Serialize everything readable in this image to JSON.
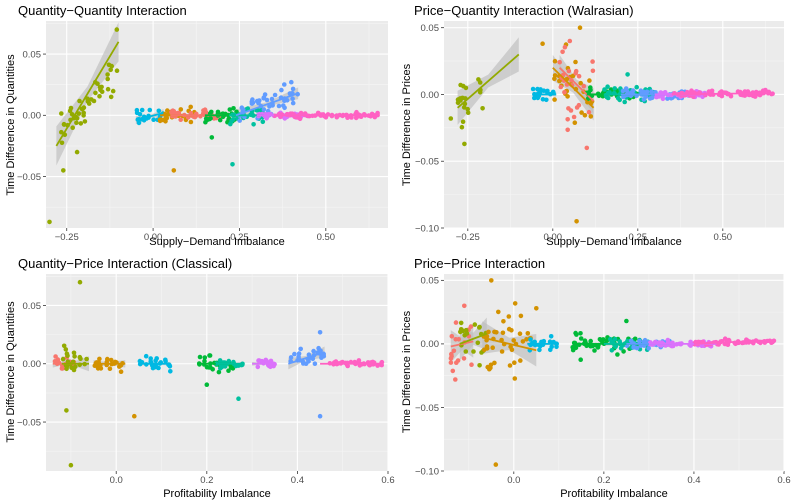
{
  "colors": {
    "panel_bg": "#EBEBEB",
    "grid_major": "#FFFFFF",
    "grid_minor": "#F5F5F5",
    "ribbon": "#BDBDBD",
    "groups": [
      "#F8766D",
      "#D39200",
      "#93AA00",
      "#00BA38",
      "#00C19F",
      "#00B9E3",
      "#619CFF",
      "#DB72FB",
      "#FF61C3"
    ]
  },
  "chart_data": [
    {
      "type": "scatter",
      "title": "Quantity−Quantity Interaction",
      "xlabel": "Supply−Demand Imbalance",
      "ylabel": "Time Difference in Quantities",
      "xlim": [
        -0.31,
        0.68
      ],
      "ylim": [
        -0.092,
        0.077
      ],
      "xticks": [
        -0.25,
        0.0,
        0.25,
        0.5
      ],
      "xtick_labels": [
        "−0.25",
        "0.00",
        "0.25",
        "0.50"
      ],
      "yticks": [
        -0.05,
        0.0,
        0.05
      ],
      "ytick_labels": [
        "−0.05",
        "0.00",
        "0.05"
      ],
      "grid": true,
      "groups": [
        {
          "color": "#93AA00",
          "x_range": [
            -0.28,
            -0.1
          ],
          "center": 0.0,
          "spread": 0.007,
          "outliers": [
            [
              -0.105,
              0.07
            ],
            [
              -0.3,
              -0.087
            ],
            [
              -0.26,
              -0.045
            ],
            [
              -0.22,
              -0.03
            ]
          ],
          "fit": [
            [
              -0.28,
              -0.025
            ],
            [
              -0.1,
              0.06
            ]
          ],
          "ribbon": 0.01
        },
        {
          "color": "#00B9E3",
          "x_range": [
            -0.05,
            0.03
          ],
          "center": 0.0,
          "spread": 0.003,
          "outliers": [],
          "fit": [
            [
              -0.05,
              -0.004
            ],
            [
              0.03,
              0.002
            ]
          ],
          "ribbon": 0.002
        },
        {
          "color": "#D39200",
          "x_range": [
            0.02,
            0.12
          ],
          "center": 0.0,
          "spread": 0.004,
          "outliers": [
            [
              0.06,
              -0.045
            ]
          ],
          "fit": [
            [
              0.02,
              0.0
            ],
            [
              0.12,
              0.0
            ]
          ],
          "ribbon": 0.001
        },
        {
          "color": "#F8766D",
          "x_range": [
            0.05,
            0.2
          ],
          "center": 0.0,
          "spread": 0.002,
          "outliers": [],
          "fit": [
            [
              0.05,
              0.0
            ],
            [
              0.2,
              0.0
            ]
          ],
          "ribbon": 0.001
        },
        {
          "color": "#00BA38",
          "x_range": [
            0.15,
            0.25
          ],
          "center": 0.0,
          "spread": 0.003,
          "outliers": [
            [
              0.17,
              -0.018
            ]
          ],
          "fit": [
            [
              0.15,
              0.0
            ],
            [
              0.25,
              0.0
            ]
          ],
          "ribbon": 0.001
        },
        {
          "color": "#00C19F",
          "x_range": [
            0.22,
            0.32
          ],
          "center": 0.0,
          "spread": 0.003,
          "outliers": [
            [
              0.23,
              -0.04
            ]
          ],
          "fit": [
            [
              0.22,
              0.0
            ],
            [
              0.32,
              0.0
            ]
          ],
          "ribbon": 0.001
        },
        {
          "color": "#619CFF",
          "x_range": [
            0.25,
            0.42
          ],
          "center": 0.008,
          "spread": 0.005,
          "outliers": [
            [
              0.4,
              0.027
            ]
          ],
          "fit": [
            [
              0.24,
              0.0
            ],
            [
              0.42,
              0.018
            ]
          ],
          "ribbon": 0.003
        },
        {
          "color": "#DB72FB",
          "x_range": [
            0.3,
            0.45
          ],
          "center": 0.0,
          "spread": 0.001,
          "outliers": [],
          "fit": [
            [
              0.3,
              0.0
            ],
            [
              0.45,
              0.0
            ]
          ],
          "ribbon": 0.0
        },
        {
          "color": "#FF61C3",
          "x_range": [
            0.35,
            0.65
          ],
          "center": 0.0,
          "spread": 0.001,
          "outliers": [],
          "fit": [
            [
              0.35,
              0.0
            ],
            [
              0.65,
              0.0
            ]
          ],
          "ribbon": 0.0
        }
      ]
    },
    {
      "type": "scatter",
      "title": "Price−Quantity Interaction (Walrasian)",
      "xlabel": "Supply−Demand Imbalance",
      "ylabel": "Time Difference in Prices",
      "xlim": [
        -0.32,
        0.68
      ],
      "ylim": [
        -0.1,
        0.055
      ],
      "xticks": [
        -0.25,
        0.0,
        0.25,
        0.5
      ],
      "xtick_labels": [
        "−0.25",
        "0.00",
        "0.25",
        "0.50"
      ],
      "yticks": [
        -0.1,
        -0.05,
        0.0,
        0.05
      ],
      "ytick_labels": [
        "−0.10",
        "−0.05",
        "0.00",
        "0.05"
      ],
      "grid": true,
      "groups": [
        {
          "color": "#93AA00",
          "x_range": [
            -0.28,
            -0.2
          ],
          "center": 0.003,
          "spread": 0.008,
          "outliers": [
            [
              -0.3,
              -0.018
            ],
            [
              -0.26,
              -0.037
            ]
          ],
          "fit": [
            [
              -0.28,
              -0.01
            ],
            [
              -0.1,
              0.03
            ]
          ],
          "ribbon": 0.008
        },
        {
          "color": "#00B9E3",
          "x_range": [
            -0.06,
            0.01
          ],
          "center": 0.0,
          "spread": 0.002,
          "outliers": [],
          "fit": [
            [
              -0.06,
              0.0
            ],
            [
              0.01,
              0.0
            ]
          ],
          "ribbon": 0.001
        },
        {
          "color": "#D39200",
          "x_range": [
            0.0,
            0.12
          ],
          "center": 0.0,
          "spread": 0.012,
          "outliers": [
            [
              -0.03,
              0.038
            ],
            [
              0.07,
              -0.095
            ],
            [
              0.08,
              0.05
            ]
          ],
          "fit": [
            [
              0.0,
              0.02
            ],
            [
              0.12,
              -0.01
            ]
          ],
          "ribbon": 0.006
        },
        {
          "color": "#F8766D",
          "x_range": [
            0.02,
            0.12
          ],
          "center": 0.0,
          "spread": 0.015,
          "outliers": [
            [
              0.05,
              0.04
            ],
            [
              0.1,
              -0.04
            ]
          ],
          "fit": [
            [
              0.02,
              0.02
            ],
            [
              0.12,
              -0.005
            ]
          ],
          "ribbon": 0.006
        },
        {
          "color": "#00BA38",
          "x_range": [
            0.1,
            0.25
          ],
          "center": 0.0,
          "spread": 0.002,
          "outliers": [],
          "fit": [
            [
              0.1,
              0.0
            ],
            [
              0.25,
              0.0
            ]
          ],
          "ribbon": 0.001
        },
        {
          "color": "#00C19F",
          "x_range": [
            0.15,
            0.3
          ],
          "center": 0.002,
          "spread": 0.003,
          "outliers": [
            [
              0.22,
              0.015
            ]
          ],
          "fit": [
            [
              0.15,
              0.0
            ],
            [
              0.3,
              0.0
            ]
          ],
          "ribbon": 0.001
        },
        {
          "color": "#619CFF",
          "x_range": [
            0.2,
            0.4
          ],
          "center": 0.0,
          "spread": 0.002,
          "outliers": [],
          "fit": [
            [
              0.2,
              0.0
            ],
            [
              0.4,
              0.0
            ]
          ],
          "ribbon": 0.001
        },
        {
          "color": "#DB72FB",
          "x_range": [
            0.3,
            0.45
          ],
          "center": 0.0,
          "spread": 0.001,
          "outliers": [],
          "fit": [
            [
              0.3,
              0.0
            ],
            [
              0.45,
              0.0
            ]
          ],
          "ribbon": 0.0
        },
        {
          "color": "#FF61C3",
          "x_range": [
            0.35,
            0.65
          ],
          "center": 0.001,
          "spread": 0.001,
          "outliers": [],
          "fit": [
            [
              0.35,
              0.0
            ],
            [
              0.65,
              0.001
            ]
          ],
          "ribbon": 0.0
        }
      ]
    },
    {
      "type": "scatter",
      "title": "Quantity−Price Interaction (Classical)",
      "xlabel": "Profitability Imbalance",
      "ylabel": "Time Difference in Quantities",
      "xlim": [
        -0.155,
        0.6
      ],
      "ylim": [
        -0.092,
        0.077
      ],
      "xticks": [
        0.0,
        0.2,
        0.4,
        0.6
      ],
      "xtick_labels": [
        "0.0",
        "0.2",
        "0.4",
        "0.6"
      ],
      "yticks": [
        -0.05,
        0.0,
        0.05
      ],
      "ytick_labels": [
        "−0.05",
        "0.00",
        "0.05"
      ],
      "grid": true,
      "groups": [
        {
          "color": "#F8766D",
          "x_range": [
            -0.14,
            -0.09
          ],
          "center": 0.0,
          "spread": 0.003,
          "outliers": [],
          "fit": [
            [
              -0.14,
              0.0
            ],
            [
              -0.09,
              0.0
            ]
          ],
          "ribbon": 0.002
        },
        {
          "color": "#93AA00",
          "x_range": [
            -0.12,
            -0.06
          ],
          "center": 0.0,
          "spread": 0.006,
          "outliers": [
            [
              -0.08,
              0.07
            ],
            [
              -0.1,
              -0.087
            ],
            [
              -0.11,
              -0.04
            ]
          ],
          "fit": [
            [
              -0.12,
              0.0
            ],
            [
              -0.06,
              0.0
            ]
          ],
          "ribbon": 0.004
        },
        {
          "color": "#D39200",
          "x_range": [
            -0.05,
            0.02
          ],
          "center": 0.0,
          "spread": 0.003,
          "outliers": [
            [
              0.04,
              -0.045
            ]
          ],
          "fit": [
            [
              -0.05,
              0.0
            ],
            [
              0.02,
              0.0
            ]
          ],
          "ribbon": 0.002
        },
        {
          "color": "#00B9E3",
          "x_range": [
            0.05,
            0.12
          ],
          "center": 0.0,
          "spread": 0.003,
          "outliers": [],
          "fit": [
            [
              0.05,
              0.0
            ],
            [
              0.12,
              0.0
            ]
          ],
          "ribbon": 0.001
        },
        {
          "color": "#00BA38",
          "x_range": [
            0.18,
            0.26
          ],
          "center": 0.0,
          "spread": 0.003,
          "outliers": [
            [
              0.2,
              -0.018
            ]
          ],
          "fit": [
            [
              0.18,
              0.0
            ],
            [
              0.26,
              0.0
            ]
          ],
          "ribbon": 0.001
        },
        {
          "color": "#00C19F",
          "x_range": [
            0.22,
            0.28
          ],
          "center": 0.0,
          "spread": 0.002,
          "outliers": [
            [
              0.27,
              -0.03
            ]
          ],
          "fit": [
            [
              0.22,
              0.0
            ],
            [
              0.28,
              0.0
            ]
          ],
          "ribbon": 0.001
        },
        {
          "color": "#619CFF",
          "x_range": [
            0.38,
            0.46
          ],
          "center": 0.004,
          "spread": 0.004,
          "outliers": [
            [
              0.45,
              0.027
            ],
            [
              0.45,
              -0.045
            ]
          ],
          "fit": [
            [
              0.38,
              0.0
            ],
            [
              0.46,
              0.01
            ]
          ],
          "ribbon": 0.003
        },
        {
          "color": "#DB72FB",
          "x_range": [
            0.3,
            0.35
          ],
          "center": 0.0,
          "spread": 0.002,
          "outliers": [],
          "fit": [
            [
              0.3,
              0.0
            ],
            [
              0.35,
              0.0
            ]
          ],
          "ribbon": 0.001
        },
        {
          "color": "#FF61C3",
          "x_range": [
            0.47,
            0.59
          ],
          "center": 0.0,
          "spread": 0.001,
          "outliers": [],
          "fit": [
            [
              0.45,
              0.0
            ],
            [
              0.59,
              0.0
            ]
          ],
          "ribbon": 0.0
        }
      ]
    },
    {
      "type": "scatter",
      "title": "Price−Price Interaction",
      "xlabel": "Profitability Imbalance",
      "ylabel": "Time Difference in Prices",
      "xlim": [
        -0.155,
        0.6
      ],
      "ylim": [
        -0.1,
        0.055
      ],
      "xticks": [
        0.0,
        0.2,
        0.4,
        0.6
      ],
      "xtick_labels": [
        "0.0",
        "0.2",
        "0.4",
        "0.6"
      ],
      "yticks": [
        -0.1,
        -0.05,
        0.0,
        0.05
      ],
      "ytick_labels": [
        "−0.10",
        "−0.05",
        "0.00",
        "0.05"
      ],
      "grid": true,
      "groups": [
        {
          "color": "#F8766D",
          "x_range": [
            -0.14,
            -0.09
          ],
          "center": 0.0,
          "spread": 0.012,
          "outliers": [
            [
              -0.13,
              -0.028
            ],
            [
              -0.11,
              0.03
            ]
          ],
          "fit": [
            [
              -0.14,
              -0.002
            ],
            [
              -0.09,
              0.002
            ]
          ],
          "ribbon": 0.008
        },
        {
          "color": "#93AA00",
          "x_range": [
            -0.12,
            -0.06
          ],
          "center": 0.005,
          "spread": 0.01,
          "outliers": [],
          "fit": [
            [
              -0.12,
              0.0
            ],
            [
              -0.06,
              0.008
            ]
          ],
          "ribbon": 0.008
        },
        {
          "color": "#D39200",
          "x_range": [
            -0.07,
            0.05
          ],
          "center": 0.0,
          "spread": 0.014,
          "outliers": [
            [
              -0.05,
              0.05
            ],
            [
              -0.04,
              -0.095
            ],
            [
              0.05,
              0.028
            ]
          ],
          "fit": [
            [
              -0.07,
              0.005
            ],
            [
              0.05,
              -0.005
            ]
          ],
          "ribbon": 0.008
        },
        {
          "color": "#00B9E3",
          "x_range": [
            0.03,
            0.1
          ],
          "center": 0.0,
          "spread": 0.002,
          "outliers": [],
          "fit": [
            [
              0.03,
              0.0
            ],
            [
              0.1,
              0.0
            ]
          ],
          "ribbon": 0.001
        },
        {
          "color": "#00BA38",
          "x_range": [
            0.13,
            0.28
          ],
          "center": 0.002,
          "spread": 0.004,
          "outliers": [
            [
              0.25,
              0.018
            ]
          ],
          "fit": [
            [
              0.13,
              0.0
            ],
            [
              0.28,
              0.0
            ]
          ],
          "ribbon": 0.001
        },
        {
          "color": "#00C19F",
          "x_range": [
            0.2,
            0.3
          ],
          "center": 0.0,
          "spread": 0.003,
          "outliers": [],
          "fit": [
            [
              0.2,
              0.0
            ],
            [
              0.3,
              0.0
            ]
          ],
          "ribbon": 0.001
        },
        {
          "color": "#619CFF",
          "x_range": [
            0.25,
            0.35
          ],
          "center": 0.0,
          "spread": 0.002,
          "outliers": [],
          "fit": [
            [
              0.25,
              0.0
            ],
            [
              0.35,
              0.0
            ]
          ],
          "ribbon": 0.001
        },
        {
          "color": "#DB72FB",
          "x_range": [
            0.3,
            0.45
          ],
          "center": 0.0,
          "spread": 0.001,
          "outliers": [],
          "fit": [
            [
              0.3,
              0.0
            ],
            [
              0.45,
              0.0
            ]
          ],
          "ribbon": 0.0
        },
        {
          "color": "#FF61C3",
          "x_range": [
            0.4,
            0.58
          ],
          "center": 0.001,
          "spread": 0.001,
          "outliers": [],
          "fit": [
            [
              0.4,
              0.0
            ],
            [
              0.58,
              0.003
            ]
          ],
          "ribbon": 0.0
        }
      ]
    }
  ]
}
